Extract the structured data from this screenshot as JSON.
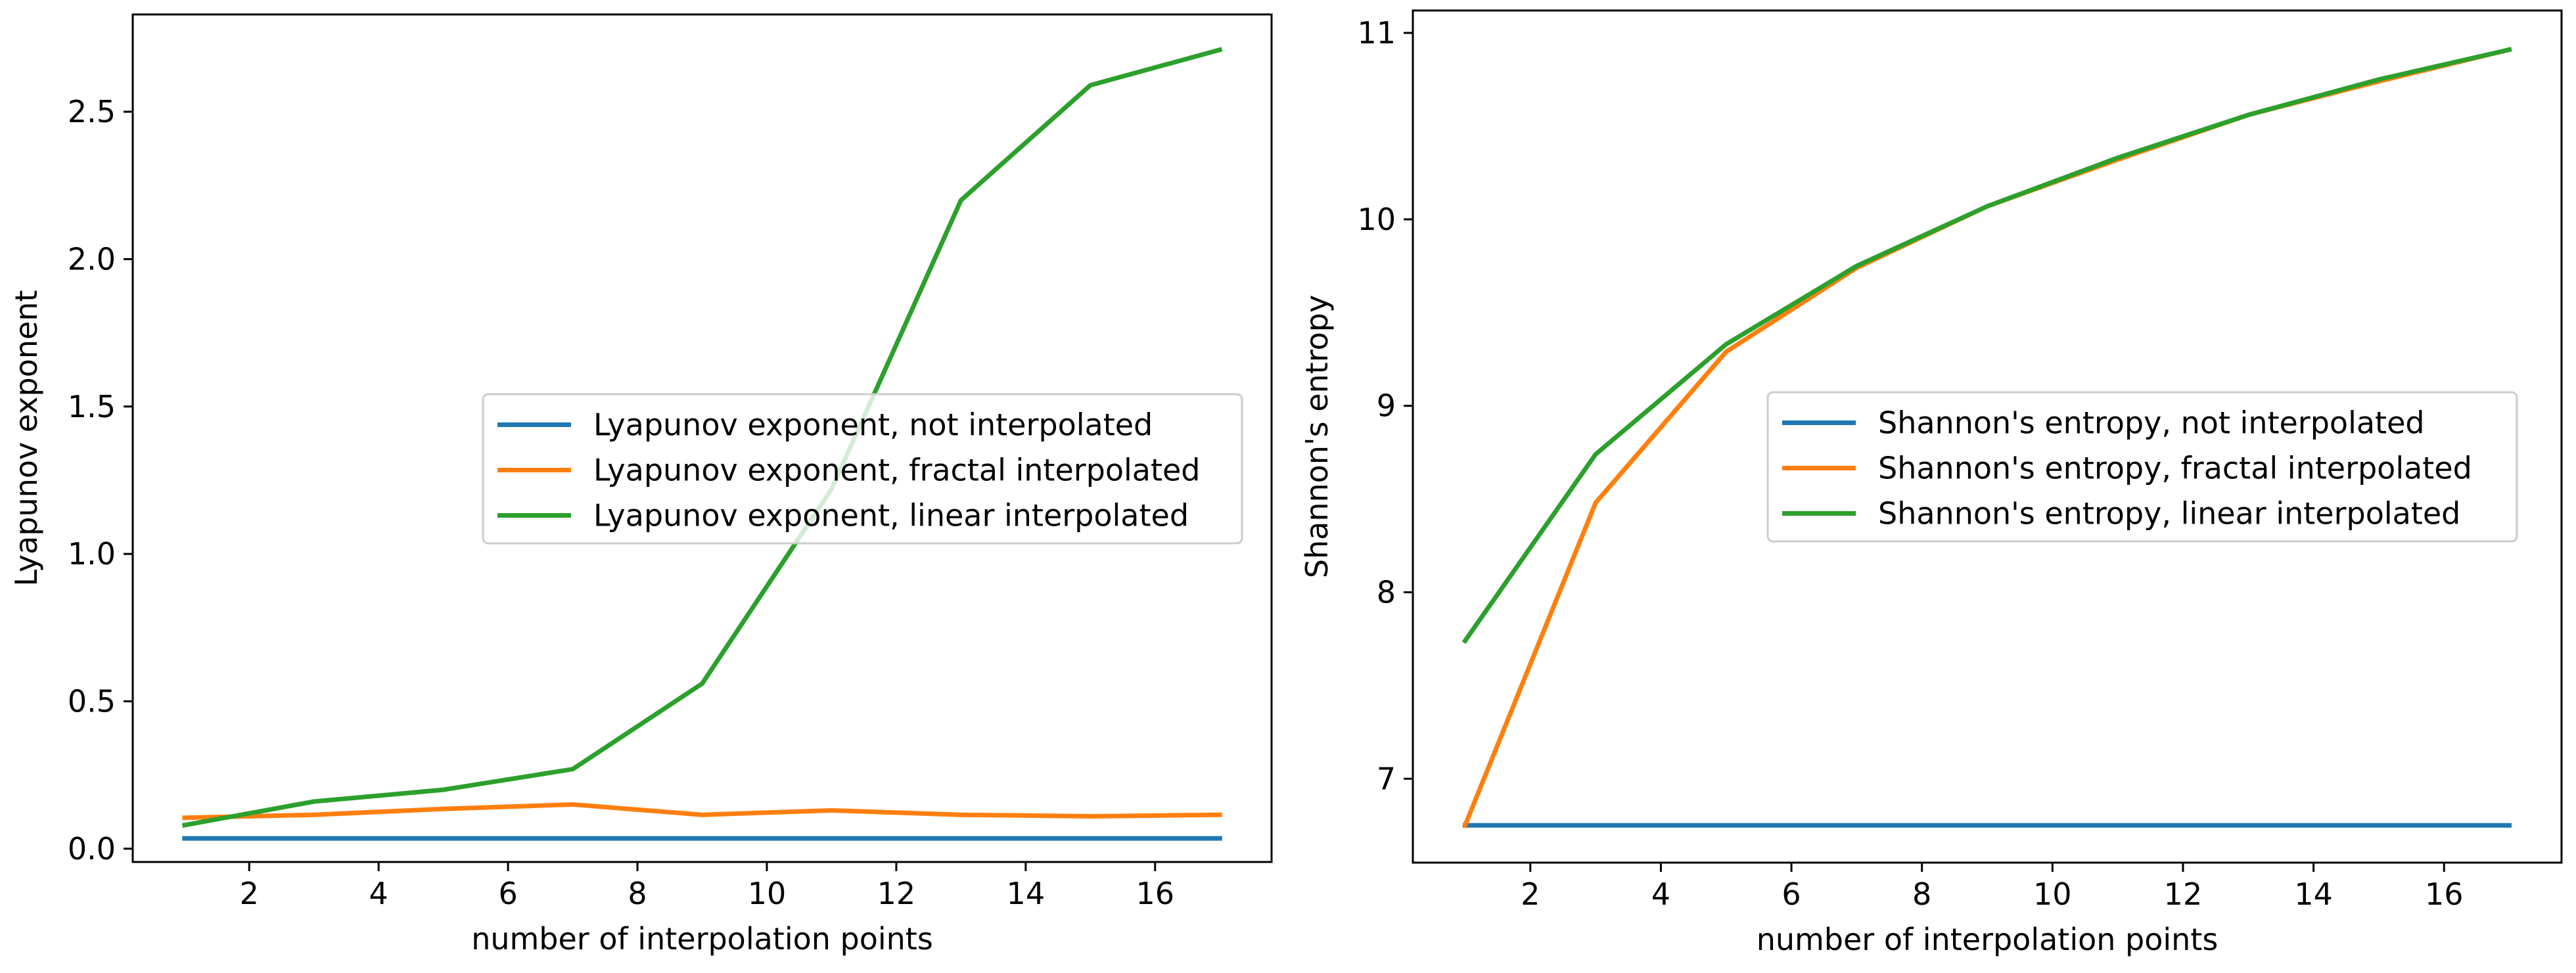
{
  "chart_data": [
    {
      "type": "line",
      "title": "",
      "xlabel": "number of interpolation points",
      "ylabel": "Lyapunov exponent",
      "xlim": [
        0.2,
        17.8
      ],
      "ylim": [
        -0.045,
        2.83
      ],
      "xticks": [
        2,
        4,
        6,
        8,
        10,
        12,
        14,
        16
      ],
      "xtick_labels": [
        "2",
        "4",
        "6",
        "8",
        "10",
        "12",
        "14",
        "16"
      ],
      "yticks": [
        0.0,
        0.5,
        1.0,
        1.5,
        2.0,
        2.5
      ],
      "ytick_labels": [
        "0.0",
        "0.5",
        "1.0",
        "1.5",
        "2.0",
        "2.5"
      ],
      "x": [
        1,
        3,
        5,
        7,
        9,
        11,
        13,
        15,
        17
      ],
      "legend_position": "center-right",
      "series": [
        {
          "name": "Lyapunov exponent, not interpolated",
          "color": "#1f77b4",
          "values": [
            0.035,
            0.035,
            0.035,
            0.035,
            0.035,
            0.035,
            0.035,
            0.035,
            0.035
          ]
        },
        {
          "name": "Lyapunov exponent, fractal interpolated",
          "color": "#ff7f0e",
          "values": [
            0.105,
            0.115,
            0.135,
            0.15,
            0.115,
            0.13,
            0.115,
            0.11,
            0.115
          ]
        },
        {
          "name": "Lyapunov exponent, linear interpolated",
          "color": "#2ca02c",
          "values": [
            0.08,
            0.16,
            0.2,
            0.27,
            0.56,
            1.22,
            2.2,
            2.59,
            2.71
          ]
        }
      ]
    },
    {
      "type": "line",
      "title": "",
      "xlabel": "number of interpolation points",
      "ylabel": "Shannon's entropy",
      "xlim": [
        0.2,
        17.8
      ],
      "ylim": [
        6.55,
        11.12
      ],
      "xticks": [
        2,
        4,
        6,
        8,
        10,
        12,
        14,
        16
      ],
      "xtick_labels": [
        "2",
        "4",
        "6",
        "8",
        "10",
        "12",
        "14",
        "16"
      ],
      "yticks": [
        7,
        8,
        9,
        10,
        11
      ],
      "ytick_labels": [
        "7",
        "8",
        "9",
        "10",
        "11"
      ],
      "x": [
        1,
        3,
        5,
        7,
        9,
        11,
        13,
        15,
        17
      ],
      "legend_position": "center-right",
      "series": [
        {
          "name": "Shannon's entropy, not interpolated",
          "color": "#1f77b4",
          "values": [
            6.75,
            6.75,
            6.75,
            6.75,
            6.75,
            6.75,
            6.75,
            6.75,
            6.75
          ]
        },
        {
          "name": "Shannon's entropy, fractal interpolated",
          "color": "#ff7f0e",
          "values": [
            6.75,
            8.48,
            9.29,
            9.74,
            10.07,
            10.32,
            10.56,
            10.74,
            10.91
          ]
        },
        {
          "name": "Shannon's entropy, linear interpolated",
          "color": "#2ca02c",
          "values": [
            7.74,
            8.74,
            9.33,
            9.75,
            10.07,
            10.33,
            10.56,
            10.75,
            10.91
          ]
        }
      ]
    }
  ]
}
